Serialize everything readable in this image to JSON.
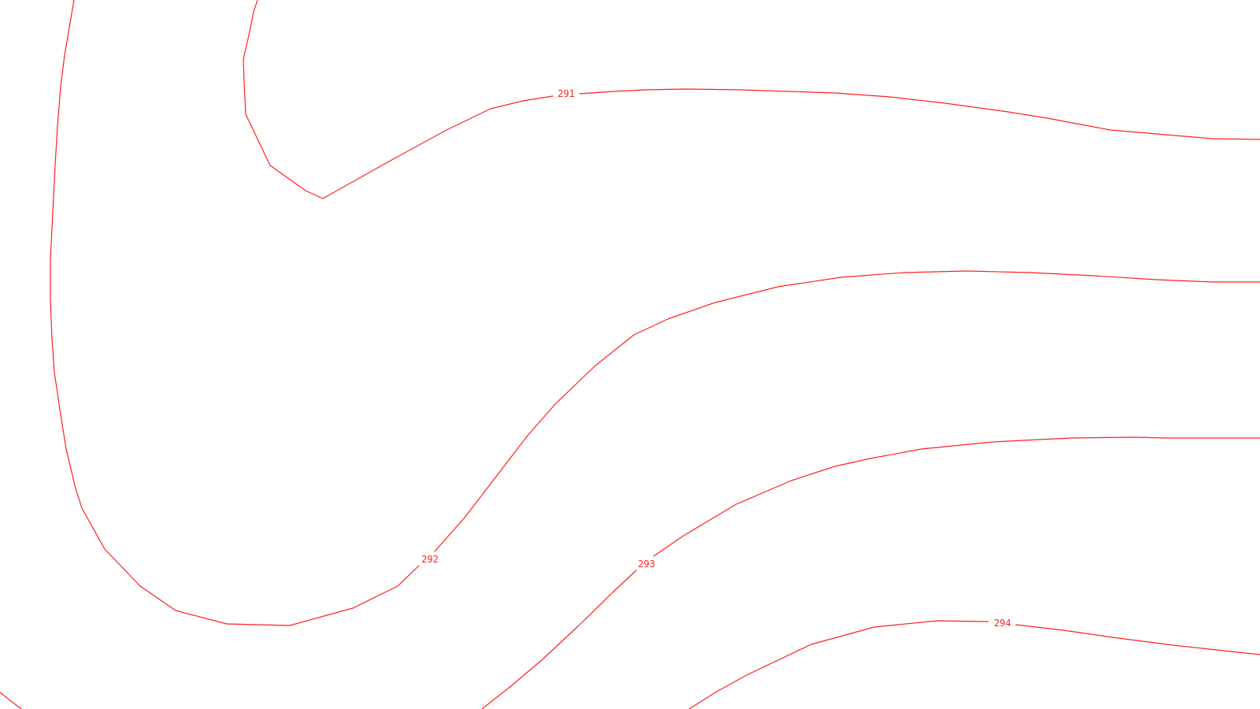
{
  "map": {
    "line_color": "#ff2020",
    "background_color": "#ffffff",
    "contours": [
      {
        "id": "c291",
        "label": "291"
      },
      {
        "id": "c292",
        "label": "292"
      },
      {
        "id": "c293",
        "label": "293"
      },
      {
        "id": "c294",
        "label": "294"
      },
      {
        "id": "c290",
        "label": ""
      }
    ]
  }
}
